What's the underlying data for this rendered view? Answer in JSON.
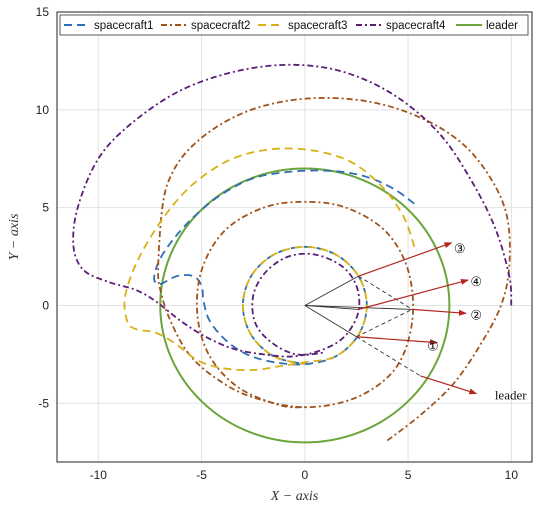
{
  "chart_data": {
    "type": "line",
    "xlabel": "X − axis",
    "ylabel": "Y − axis",
    "xlim": [
      -12,
      11
    ],
    "ylim": [
      -8,
      15
    ],
    "xticks": [
      -10,
      -5,
      0,
      5,
      10
    ],
    "yticks": [
      -5,
      0,
      5,
      10,
      15
    ],
    "grid": true,
    "legend_position": "top",
    "series": [
      {
        "name": "spacecraft1",
        "color": "#2f6db5",
        "dash": "8,5",
        "points": [
          [
            5.3,
            5.2
          ],
          [
            4.4,
            5.9
          ],
          [
            3.2,
            6.5
          ],
          [
            2.0,
            6.8
          ],
          [
            0.5,
            6.9
          ],
          [
            -1.0,
            6.8
          ],
          [
            -2.5,
            6.5
          ],
          [
            -4.0,
            5.7
          ],
          [
            -5.2,
            4.7
          ],
          [
            -6.2,
            3.6
          ],
          [
            -7.0,
            2.4
          ],
          [
            -7.3,
            1.4
          ],
          [
            -7.0,
            1.1
          ],
          [
            -6.2,
            1.5
          ],
          [
            -5.4,
            1.5
          ],
          [
            -5.0,
            1.0
          ],
          [
            -4.9,
            0.2
          ],
          [
            -4.6,
            -0.8
          ],
          [
            -3.8,
            -1.8
          ],
          [
            -2.8,
            -2.5
          ],
          [
            -1.5,
            -2.9
          ],
          [
            0,
            -3.0
          ],
          [
            1.5,
            -2.6
          ],
          [
            2.6,
            -1.5
          ],
          [
            3.0,
            0
          ],
          [
            2.6,
            1.5
          ],
          [
            1.5,
            2.6
          ],
          [
            0,
            3.0
          ],
          [
            -1.5,
            2.6
          ],
          [
            -2.6,
            1.5
          ],
          [
            -3.0,
            0
          ],
          [
            -2.6,
            -1.5
          ],
          [
            -1.5,
            -2.6
          ],
          [
            0,
            -3.0
          ]
        ]
      },
      {
        "name": "spacecraft2",
        "color": "#a0521b",
        "dash": "6,3,2,3",
        "points": [
          [
            4.0,
            -6.9
          ],
          [
            5.6,
            -5.6
          ],
          [
            7.2,
            -4.0
          ],
          [
            8.5,
            -2.0
          ],
          [
            9.5,
            0
          ],
          [
            9.9,
            2.0
          ],
          [
            9.8,
            4.5
          ],
          [
            9.0,
            6.5
          ],
          [
            7.6,
            8.3
          ],
          [
            5.6,
            9.6
          ],
          [
            3.2,
            10.4
          ],
          [
            0.5,
            10.6
          ],
          [
            -2.0,
            10.2
          ],
          [
            -4.0,
            9.3
          ],
          [
            -5.6,
            8.0
          ],
          [
            -6.5,
            6.6
          ],
          [
            -6.9,
            5.0
          ],
          [
            -7.1,
            2.0
          ],
          [
            -7.0,
            0.8
          ],
          [
            -6.5,
            -0.8
          ],
          [
            -5.6,
            -2.5
          ],
          [
            -4.2,
            -3.8
          ],
          [
            -2.5,
            -4.7
          ],
          [
            0,
            -5.2
          ],
          [
            2.5,
            -4.7
          ],
          [
            4.4,
            -3.2
          ],
          [
            5.2,
            -0.8
          ],
          [
            5.0,
            1.8
          ],
          [
            3.9,
            3.8
          ],
          [
            2.0,
            5.0
          ],
          [
            0,
            5.3
          ],
          [
            -2.0,
            5.0
          ],
          [
            -3.9,
            3.8
          ],
          [
            -5.0,
            1.8
          ],
          [
            -5.2,
            -0.5
          ],
          [
            -4.6,
            -2.6
          ],
          [
            -3.2,
            -4.2
          ],
          [
            -1.2,
            -5.1
          ],
          [
            0,
            -5.2
          ]
        ]
      },
      {
        "name": "spacecraft3",
        "color": "#d8b116",
        "dash": "8,5",
        "points": [
          [
            5.3,
            3.0
          ],
          [
            4.8,
            4.5
          ],
          [
            3.8,
            6.0
          ],
          [
            2.3,
            7.3
          ],
          [
            0.5,
            7.9
          ],
          [
            -1.5,
            8.0
          ],
          [
            -3.5,
            7.5
          ],
          [
            -5.3,
            6.3
          ],
          [
            -6.7,
            4.7
          ],
          [
            -8.0,
            2.5
          ],
          [
            -8.7,
            0.5
          ],
          [
            -8.6,
            -0.8
          ],
          [
            -8.2,
            -1.2
          ],
          [
            -7.2,
            -1.4
          ],
          [
            -6.2,
            -2.0
          ],
          [
            -5.2,
            -2.8
          ],
          [
            -4.0,
            -3.2
          ],
          [
            -2.5,
            -3.3
          ],
          [
            -1.2,
            -3.1
          ],
          [
            0,
            -2.9
          ],
          [
            1.5,
            -2.6
          ],
          [
            2.6,
            -1.5
          ],
          [
            3.0,
            0
          ],
          [
            2.6,
            1.5
          ],
          [
            1.5,
            2.6
          ],
          [
            0,
            3.0
          ],
          [
            -1.5,
            2.6
          ],
          [
            -2.6,
            1.5
          ],
          [
            -3.0,
            0
          ],
          [
            -2.6,
            -1.5
          ],
          [
            -1.5,
            -2.6
          ],
          [
            0,
            -3.0
          ]
        ]
      },
      {
        "name": "spacecraft4",
        "color": "#5a1e78",
        "dash": "6,3,2,3",
        "points": [
          [
            10.0,
            0
          ],
          [
            9.9,
            1.5
          ],
          [
            9.2,
            4.0
          ],
          [
            8.0,
            6.5
          ],
          [
            6.5,
            8.8
          ],
          [
            4.4,
            10.7
          ],
          [
            2.0,
            11.9
          ],
          [
            -0.5,
            12.3
          ],
          [
            -3.2,
            12.0
          ],
          [
            -6.0,
            11.0
          ],
          [
            -8.4,
            9.3
          ],
          [
            -10.0,
            7.5
          ],
          [
            -11.0,
            5.0
          ],
          [
            -11.2,
            3.0
          ],
          [
            -10.7,
            1.8
          ],
          [
            -9.5,
            1.2
          ],
          [
            -8.2,
            0.8
          ],
          [
            -7.2,
            0.2
          ],
          [
            -6.0,
            -0.8
          ],
          [
            -4.8,
            -1.6
          ],
          [
            -3.5,
            -2.2
          ],
          [
            -2.0,
            -2.5
          ],
          [
            -0.5,
            -2.6
          ],
          [
            1.0,
            -2.2
          ],
          [
            2.0,
            -1.5
          ],
          [
            2.6,
            -0.3
          ],
          [
            2.5,
            1.0
          ],
          [
            1.8,
            2.0
          ],
          [
            0.5,
            2.6
          ],
          [
            -0.8,
            2.5
          ],
          [
            -1.9,
            1.7
          ],
          [
            -2.5,
            0.5
          ],
          [
            -2.4,
            -0.9
          ],
          [
            -1.6,
            -1.9
          ],
          [
            -0.4,
            -2.5
          ],
          [
            1.0,
            -2.4
          ]
        ]
      },
      {
        "name": "leader",
        "color": "#6aa63a",
        "dash": "",
        "points": []
      }
    ],
    "leader_circle": {
      "center": [
        0,
        0
      ],
      "radius": 7.0
    },
    "annotations": {
      "labels": [
        {
          "text": "③",
          "x": 7.5,
          "y": 3.0
        },
        {
          "text": "④",
          "x": 8.3,
          "y": 1.3
        },
        {
          "text": "②",
          "x": 8.3,
          "y": -0.4
        },
        {
          "text": "①",
          "x": 6.2,
          "y": -2.0
        },
        {
          "text": "leader",
          "x": 9.2,
          "y": -4.6
        }
      ],
      "arrows": [
        {
          "from": [
            2.6,
            1.5
          ],
          "to": [
            7.1,
            3.2
          ]
        },
        {
          "from": [
            2.6,
            -0.2
          ],
          "to": [
            7.9,
            1.3
          ]
        },
        {
          "from": [
            5.2,
            -0.2
          ],
          "to": [
            7.8,
            -0.4
          ]
        },
        {
          "from": [
            2.5,
            -1.6
          ],
          "to": [
            6.4,
            -1.9
          ]
        },
        {
          "from": [
            5.6,
            -3.6
          ],
          "to": [
            8.3,
            -4.5
          ]
        }
      ],
      "solid_lines": [
        {
          "from": [
            0,
            0
          ],
          "to": [
            2.6,
            1.5
          ]
        },
        {
          "from": [
            0,
            0
          ],
          "to": [
            2.6,
            -0.2
          ]
        },
        {
          "from": [
            0,
            0
          ],
          "to": [
            5.2,
            -0.2
          ]
        },
        {
          "from": [
            0,
            0
          ],
          "to": [
            2.5,
            -1.6
          ]
        }
      ],
      "dashed_lines": [
        {
          "from": [
            2.6,
            1.5
          ],
          "to": [
            5.2,
            -0.2
          ]
        },
        {
          "from": [
            2.5,
            -1.6
          ],
          "to": [
            5.2,
            -0.2
          ]
        },
        {
          "from": [
            2.5,
            -1.6
          ],
          "to": [
            5.6,
            -3.6
          ]
        }
      ]
    }
  }
}
